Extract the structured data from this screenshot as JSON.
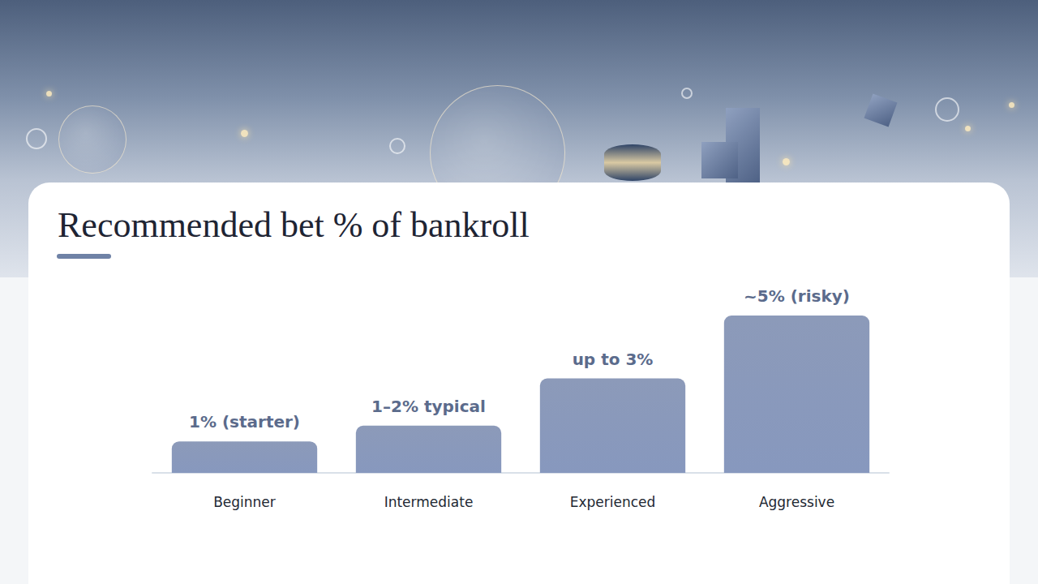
{
  "chart_data": {
    "type": "bar",
    "title": "Recommended bet % of bankroll",
    "categories": [
      "Beginner",
      "Intermediate",
      "Experienced",
      "Aggressive"
    ],
    "values": [
      1,
      1.5,
      3,
      5
    ],
    "value_labels": [
      "1% (starter)",
      "1–2% typical",
      "up to 3%",
      "~5% (risky)"
    ],
    "color": "#7d8db0",
    "ylim": [
      0,
      5
    ],
    "grid": false,
    "data_labels": true,
    "tick_labels": "x"
  }
}
